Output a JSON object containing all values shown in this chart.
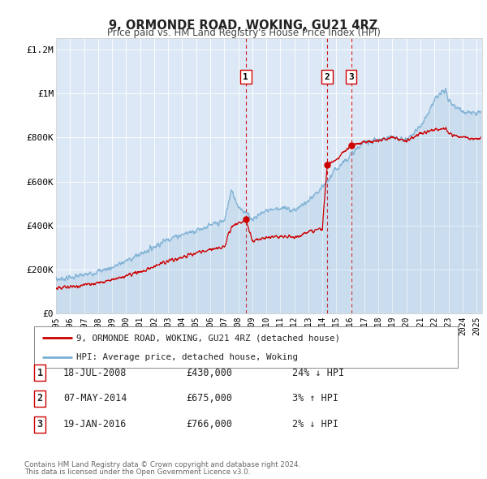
{
  "title": "9, ORMONDE ROAD, WOKING, GU21 4RZ",
  "subtitle": "Price paid vs. HM Land Registry's House Price Index (HPI)",
  "plot_bg_color": "#dce8f5",
  "hpi_color": "#7bafd4",
  "price_color": "#cc0000",
  "vline_color": "#cc0000",
  "ylim": [
    0,
    1250000
  ],
  "xlim_start": 1995.0,
  "xlim_end": 2025.4,
  "sales": [
    {
      "label": "1",
      "date": 2008.54,
      "price": 430000,
      "text": "18-JUL-2008",
      "amount": "£430,000",
      "pct": "24% ↓ HPI"
    },
    {
      "label": "2",
      "date": 2014.35,
      "price": 675000,
      "text": "07-MAY-2014",
      "amount": "£675,000",
      "pct": "3% ↑ HPI"
    },
    {
      "label": "3",
      "date": 2016.05,
      "price": 766000,
      "text": "19-JAN-2016",
      "amount": "£766,000",
      "pct": "2% ↓ HPI"
    }
  ],
  "yticks": [
    0,
    200000,
    400000,
    600000,
    800000,
    1000000,
    1200000
  ],
  "ytick_labels": [
    "£0",
    "£200K",
    "£400K",
    "£600K",
    "£800K",
    "£1M",
    "£1.2M"
  ],
  "xticks": [
    1995,
    1996,
    1997,
    1998,
    1999,
    2000,
    2001,
    2002,
    2003,
    2004,
    2005,
    2006,
    2007,
    2008,
    2009,
    2010,
    2011,
    2012,
    2013,
    2014,
    2015,
    2016,
    2017,
    2018,
    2019,
    2020,
    2021,
    2022,
    2023,
    2024,
    2025
  ],
  "legend_property_label": "9, ORMONDE ROAD, WOKING, GU21 4RZ (detached house)",
  "legend_hpi_label": "HPI: Average price, detached house, Woking",
  "footer_line1": "Contains HM Land Registry data © Crown copyright and database right 2024.",
  "footer_line2": "This data is licensed under the Open Government Licence v3.0.",
  "hpi_targets": {
    "1995.0": 155000,
    "1997.0": 175000,
    "1999.0": 210000,
    "2001.0": 270000,
    "2003.0": 340000,
    "2005.0": 380000,
    "2007.0": 420000,
    "2007.5": 560000,
    "2008.0": 490000,
    "2009.0": 430000,
    "2010.0": 470000,
    "2011.0": 480000,
    "2012.0": 470000,
    "2013.0": 510000,
    "2014.0": 570000,
    "2015.0": 660000,
    "2016.0": 720000,
    "2017.0": 780000,
    "2018.0": 790000,
    "2019.0": 800000,
    "2020.0": 790000,
    "2021.0": 850000,
    "2022.0": 970000,
    "2022.8": 1020000,
    "2023.0": 960000,
    "2024.0": 920000,
    "2025.3": 910000
  },
  "price_targets": {
    "1995.0": 115000,
    "1997.0": 130000,
    "1999.0": 155000,
    "2001.0": 190000,
    "2003.0": 240000,
    "2005.0": 275000,
    "2007.0": 305000,
    "2007.5": 390000,
    "2008.54": 430000,
    "2009.0": 330000,
    "2010.0": 345000,
    "2011.0": 350000,
    "2012.0": 345000,
    "2013.0": 370000,
    "2014.0": 385000,
    "2014.35": 675000,
    "2015.0": 700000,
    "2016.05": 766000,
    "2017.0": 780000,
    "2018.0": 785000,
    "2019.0": 800000,
    "2020.0": 785000,
    "2021.0": 820000,
    "2022.0": 835000,
    "2022.8": 840000,
    "2023.0": 820000,
    "2024.0": 800000,
    "2025.3": 795000
  }
}
